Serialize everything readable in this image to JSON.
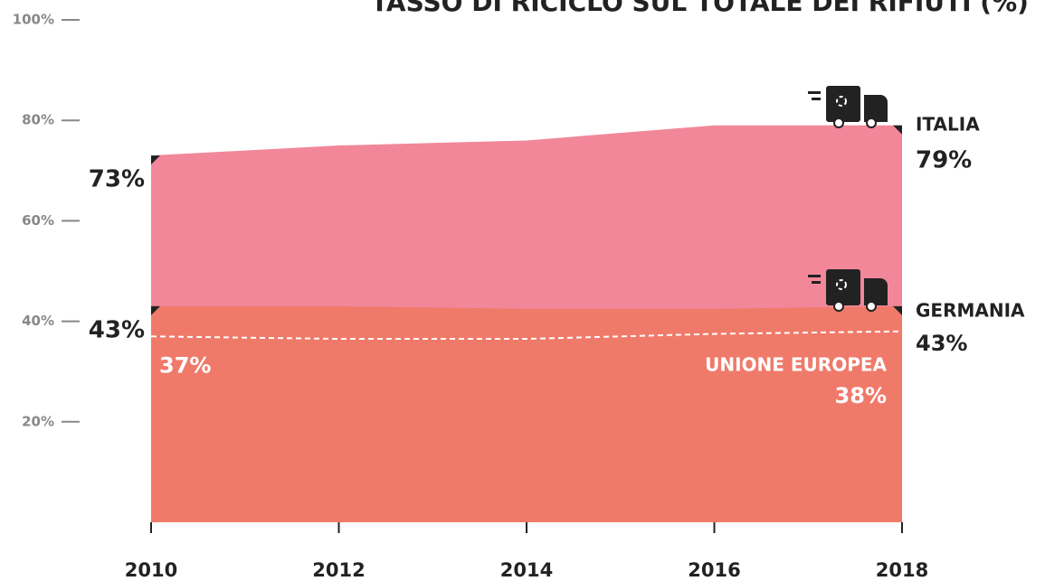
{
  "chart_data": {
    "type": "area",
    "title": "TASSO DI RICICLO SUL TOTALE DEI RIFIUTI (%)",
    "x": [
      2010,
      2012,
      2014,
      2016,
      2018
    ],
    "xlim": [
      2010,
      2018
    ],
    "xticks": [
      2010,
      2012,
      2014,
      2016,
      2018
    ],
    "ylim": [
      0,
      100
    ],
    "yticks": [
      {
        "value": 20,
        "label": "20%"
      },
      {
        "value": 40,
        "label": "40%"
      },
      {
        "value": 60,
        "label": "60%"
      },
      {
        "value": 80,
        "label": "80%"
      },
      {
        "value": 100,
        "label": "100%"
      }
    ],
    "series": [
      {
        "name": "ITALIA",
        "color": "#f2879a",
        "values": [
          73,
          75,
          76,
          79,
          79
        ],
        "value_labels": [
          "73%",
          null,
          null,
          null,
          "79%"
        ]
      },
      {
        "name": "GERMANIA",
        "color": "#f07a6a",
        "values": [
          43,
          43,
          42.5,
          42.5,
          43
        ],
        "value_labels": [
          "43%",
          null,
          null,
          null,
          "43%"
        ]
      },
      {
        "name": "UNIONE EUROPEA",
        "color": "#ffffff",
        "style": "dashed",
        "values": [
          37,
          36.5,
          36.5,
          37.5,
          38
        ],
        "value_labels": [
          "37%",
          null,
          null,
          null,
          "38%"
        ]
      }
    ]
  }
}
